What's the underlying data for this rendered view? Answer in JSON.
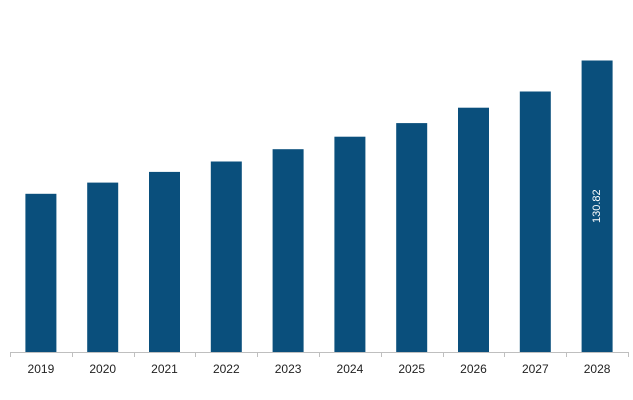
{
  "chart_data": {
    "type": "bar",
    "categories": [
      "2019",
      "2020",
      "2021",
      "2022",
      "2023",
      "2024",
      "2025",
      "2026",
      "2027",
      "2028"
    ],
    "values": [
      71.0,
      76.0,
      80.8,
      85.5,
      91.0,
      96.6,
      102.7,
      109.6,
      116.9,
      130.82
    ],
    "data_labels": [
      "",
      "",
      "",
      "",
      "",
      "",
      "",
      "",
      "",
      "130.82"
    ],
    "title": "",
    "xlabel": "",
    "ylabel": "",
    "ylim": [
      0,
      140
    ],
    "grid": false,
    "legend": "none",
    "bar_color": "#0a4f7c",
    "axis_color": "#bfbfbf"
  }
}
